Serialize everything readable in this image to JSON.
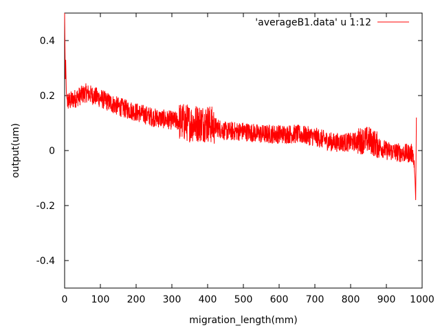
{
  "chart_data": {
    "type": "line",
    "title": "",
    "xlabel": "migration_length(mm)",
    "ylabel": "output(um)",
    "xlim": [
      0,
      1000
    ],
    "ylim": [
      -0.5,
      0.5
    ],
    "x_ticks": [
      "0",
      "100",
      "200",
      "300",
      "400",
      "500",
      "600",
      "700",
      "800",
      "900",
      "1000"
    ],
    "y_ticks": [
      "-0.4",
      "-0.2",
      "0",
      "0.2",
      "0.4"
    ],
    "grid": false,
    "legend_position": "top-right",
    "series": [
      {
        "name": "'averageB1.data' u 1:12",
        "color": "#ff0000",
        "style": "noisy line, approx. 0.08 peak-to-peak noise, denser noise bursts near x=320-420 and x=820-880",
        "x": [
          0,
          2,
          3,
          5,
          8,
          15,
          30,
          60,
          100,
          150,
          200,
          250,
          300,
          350,
          400,
          450,
          500,
          550,
          600,
          650,
          700,
          750,
          800,
          850,
          900,
          950,
          975,
          980,
          982,
          984
        ],
        "y": [
          0.5,
          0.26,
          0.33,
          0.2,
          0.18,
          0.18,
          0.19,
          0.21,
          0.19,
          0.16,
          0.14,
          0.12,
          0.11,
          0.1,
          0.1,
          0.07,
          0.07,
          0.06,
          0.06,
          0.06,
          0.05,
          0.03,
          0.03,
          0.04,
          0.0,
          -0.01,
          -0.01,
          -0.1,
          -0.18,
          0.12
        ]
      }
    ]
  }
}
